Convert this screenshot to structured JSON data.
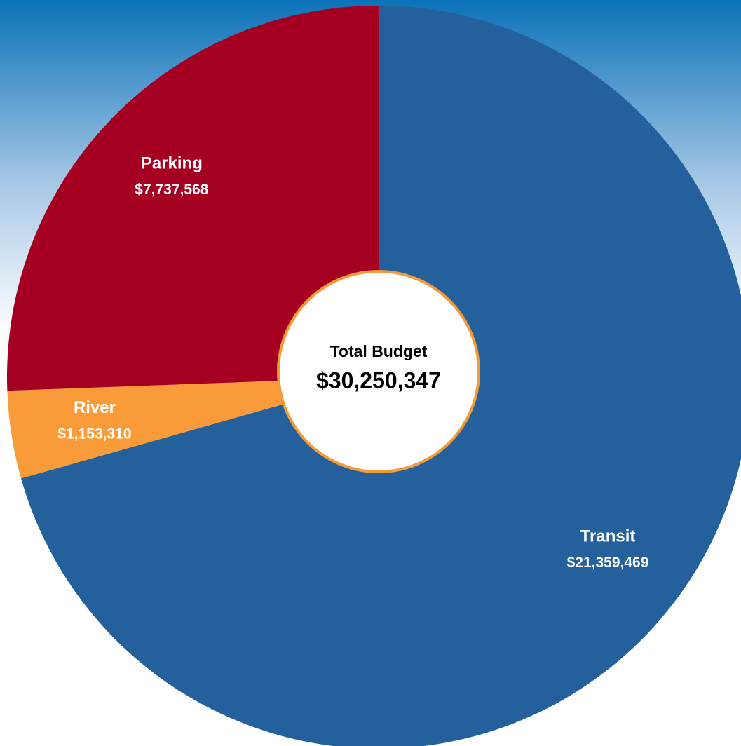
{
  "chart_data": {
    "type": "pie",
    "categories": [
      "Transit",
      "River",
      "Parking"
    ],
    "values": [
      21359469,
      1153310,
      7737568
    ],
    "value_labels": [
      "$21,359,469",
      "$1,153,310",
      "$7,737,568"
    ],
    "colors": [
      "#23609c",
      "#f99b38",
      "#a50021"
    ],
    "center_title": "Total Budget",
    "total": {
      "value": 30250347,
      "label": "$30,250,347"
    }
  }
}
